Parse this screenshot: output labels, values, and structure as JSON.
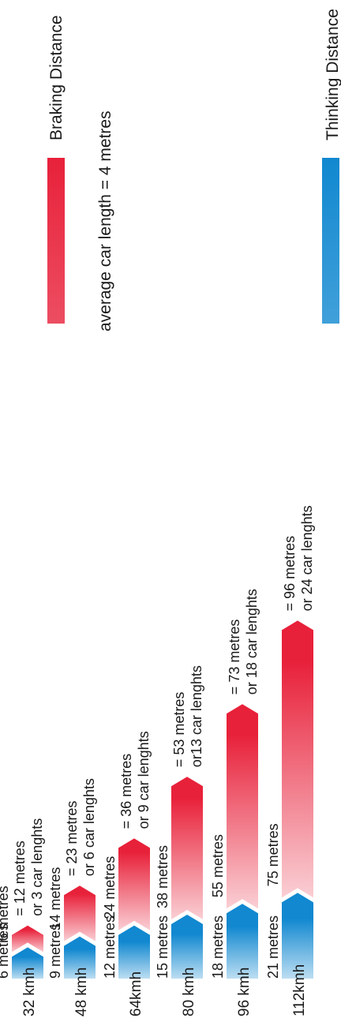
{
  "legend": {
    "thinking": "Thinking Distance",
    "braking": "Braking Distance",
    "note": "average car length = 4 metres"
  },
  "colors": {
    "thinking": "#1188d0",
    "braking": "#e8213a"
  },
  "chart_data": {
    "type": "bar",
    "orientation": "stacked, rotated 90 degrees",
    "categories": [
      "32 kmh",
      "48 kmh",
      "64kmh",
      "80 kmh",
      "96 kmh",
      "112kmh"
    ],
    "series": [
      {
        "name": "Thinking Distance",
        "values": [
          6,
          9,
          12,
          15,
          18,
          21
        ]
      },
      {
        "name": "Braking Distance",
        "values": [
          6,
          14,
          24,
          38,
          55,
          75
        ]
      }
    ],
    "thinking_labels": [
      "6 metres",
      "9 metres",
      "12 metres",
      "15 metres",
      "18 metres",
      "21 metres"
    ],
    "braking_labels": [
      "6 metres",
      "14 metres",
      "24 metres",
      "38 metres",
      "55 metres",
      "75 metres"
    ],
    "total_labels": [
      [
        "= 12 metres",
        "or 3 car lenghts"
      ],
      [
        "= 23 metres",
        "or 6 car lenghts"
      ],
      [
        "= 36 metres",
        "or 9 car lenghts"
      ],
      [
        "= 53 metres",
        "or13 car lenghts"
      ],
      [
        "= 73 metres",
        "or 18 car lenghts"
      ],
      [
        "= 96 metres",
        "or 24 car lenghts"
      ]
    ]
  }
}
